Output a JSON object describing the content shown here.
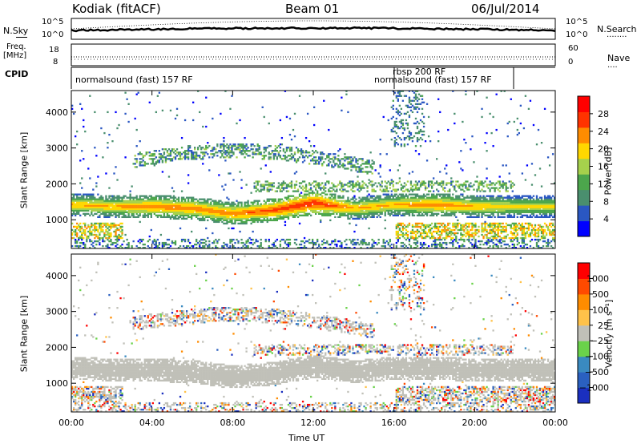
{
  "header": {
    "title": "Kodiak (fitACF)",
    "beam": "Beam 01",
    "date": "06/Jul/2014"
  },
  "top_panel": {
    "left_label": "N.Sky",
    "right_label": "N.Search",
    "right_legend": "........",
    "left_ticks": [
      "10^5",
      "10^0"
    ],
    "right_ticks": [
      "10^5",
      "10^0"
    ]
  },
  "freq_panel": {
    "left_label_1": "Freq.",
    "left_label_2": "[MHz]",
    "left_ticks": [
      "18",
      "8"
    ],
    "right_label": "Nave",
    "right_legend": "....",
    "right_ticks": [
      "60",
      "0"
    ]
  },
  "cpid": {
    "label": "CPID",
    "segments": [
      {
        "name": "normalsound (fast) 157 RF",
        "start_hour": 0,
        "end_hour": 16
      },
      {
        "name": "rbsp 200 RF",
        "start_hour": 16,
        "end_hour": 16.1
      },
      {
        "name": "normalsound (fast) 157 RF",
        "start_hour": 16.1,
        "end_hour": 22.2
      }
    ]
  },
  "power_legend": {
    "label": "Power [dB]",
    "ticks": [
      "28",
      "24",
      "20",
      "16",
      "12",
      "8",
      "4"
    ],
    "colors": [
      "#0000ff",
      "#2a57c2",
      "#4a8f6e",
      "#4ca64c",
      "#a6d14c",
      "#ffd700",
      "#ff8c00",
      "#ff3300",
      "#ff0000"
    ]
  },
  "velocity_legend": {
    "label": "Velocity [m s⁻¹]",
    "ticks": [
      "1000",
      "500",
      "100",
      "25",
      "−25",
      "−100",
      "−500",
      "−1000"
    ],
    "colors": [
      "#1a2fbf",
      "#2a60c0",
      "#3a8ac0",
      "#6ad24a",
      "#c0c0b8",
      "#ffc24a",
      "#ff8c00",
      "#ff4a00",
      "#ff0000"
    ]
  },
  "chart_data": [
    {
      "type": "heatmap",
      "title": "",
      "xlabel": "Time UT",
      "ylabel": "Slant Range [km]",
      "xlim": [
        "00:00",
        "24:00"
      ],
      "ylim": [
        200,
        4600
      ],
      "xticks": [
        "00:00",
        "04:00",
        "08:00",
        "12:00",
        "16:00",
        "20:00",
        "00:00"
      ],
      "yticks": [
        "1000",
        "2000",
        "3000",
        "4000"
      ],
      "colorbar": "Power [dB]",
      "main_band": {
        "hours": [
          0,
          2,
          4,
          6,
          8,
          10,
          12,
          14,
          16,
          18,
          20,
          22,
          24
        ],
        "center_km": [
          1400,
          1350,
          1350,
          1300,
          1150,
          1250,
          1450,
          1300,
          1400,
          1400,
          1350,
          1350,
          1350
        ],
        "peak_db": [
          22,
          22,
          24,
          24,
          24,
          26,
          28,
          22,
          22,
          24,
          22,
          20,
          20
        ]
      }
    },
    {
      "type": "heatmap",
      "title": "",
      "xlabel": "Time UT",
      "ylabel": "Slant Range [km]",
      "xlim": [
        "00:00",
        "24:00"
      ],
      "ylim": [
        200,
        4600
      ],
      "xticks": [
        "00:00",
        "04:00",
        "08:00",
        "12:00",
        "16:00",
        "20:00",
        "00:00"
      ],
      "yticks": [
        "1000",
        "2000",
        "3000",
        "4000"
      ],
      "colorbar": "Velocity [m s⁻¹]"
    }
  ]
}
